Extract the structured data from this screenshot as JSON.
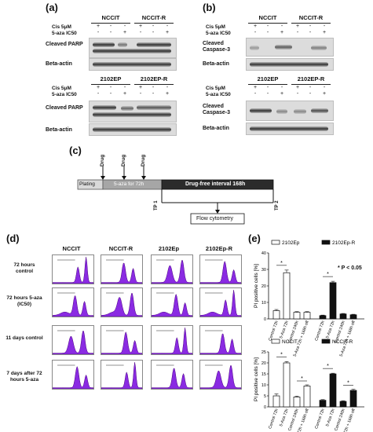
{
  "panel_a": {
    "letter": "(a)",
    "top": {
      "lines": [
        "NCCIT",
        "NCCIT-R"
      ],
      "treatments": [
        "Cis 5μM",
        "5-aza IC50"
      ],
      "cis_signs": [
        "+",
        "-",
        "-",
        "+",
        "-",
        "-"
      ],
      "aza_signs": [
        "-",
        "-",
        "+",
        "-",
        "-",
        "+"
      ],
      "target": "Cleaved PARP",
      "loading": "Beta-actin"
    },
    "bottom": {
      "lines": [
        "2102EP",
        "2102EP-R"
      ],
      "treatments": [
        "Cis 5μM",
        "5-aza IC50"
      ],
      "cis_signs": [
        "+",
        "-",
        "-",
        "+",
        "-",
        "-"
      ],
      "aza_signs": [
        "-",
        "-",
        "+",
        "-",
        "-",
        "+"
      ],
      "target": "Cleaved PARP",
      "loading": "Beta-actin"
    }
  },
  "panel_b": {
    "letter": "(b)",
    "top": {
      "lines": [
        "NCCIT",
        "NCCIT-R"
      ],
      "treatments": [
        "Cis 5μM",
        "5-aza IC50"
      ],
      "cis_signs": [
        "+",
        "-",
        "-",
        "+",
        "-",
        "-"
      ],
      "aza_signs": [
        "-",
        "-",
        "+",
        "-",
        "-",
        "+"
      ],
      "target": "Cleaved Caspase-3",
      "loading": "Beta-actin"
    },
    "bottom": {
      "lines": [
        "2102EP",
        "2102EP-R"
      ],
      "treatments": [
        "Cis 5μM",
        "5-aza IC50"
      ],
      "cis_signs": [
        "+",
        "-",
        "-",
        "+",
        "-",
        "-"
      ],
      "aza_signs": [
        "-",
        "-",
        "+",
        "-",
        "-",
        "+"
      ],
      "target": "Cleaved Caspase-3",
      "loading": "Beta-actin"
    }
  },
  "panel_c": {
    "letter": "(c)",
    "drug_label": "Drug",
    "plating": "Plating",
    "aza_period": "5-aza for 72h",
    "drug_free": "Drug-free interval 168h",
    "tp1": "TP 1",
    "tp2": "TP 2",
    "flow": "Flow cytometry"
  },
  "panel_d": {
    "letter": "(d)",
    "columns": [
      "NCCIT",
      "NCCIT-R",
      "2102Ep",
      "2102Ep-R"
    ],
    "rows": [
      "72 hours control",
      "72 hours 5-aza (IC50)",
      "11 days control",
      "7 days after 72 hours 5-aza"
    ],
    "histogram_color": "#8a2be2"
  },
  "panel_e": {
    "letter": "(e)",
    "significance_note": "* P < 0.05",
    "chart_data": [
      {
        "type": "bar",
        "ylabel": "PI positive cells [%]",
        "ylim": [
          0,
          40
        ],
        "yticks": [
          0,
          10,
          20,
          30,
          40
        ],
        "categories": [
          "Control 72h",
          "5-Aza 72h",
          "Control 240h",
          "5-Aza 72h + 168h off"
        ],
        "series": [
          {
            "name": "2102Ep",
            "fill": "#ffffff",
            "values": [
              5,
              28,
              4,
              4
            ],
            "errors": [
              0.7,
              1.6,
              0.4,
              0.4
            ]
          },
          {
            "name": "2102Ep-R",
            "fill": "#111111",
            "values": [
              2,
              22,
              3,
              2.5
            ],
            "errors": [
              0.3,
              0.8,
              0.3,
              0.3
            ]
          }
        ]
      },
      {
        "type": "bar",
        "ylabel": "PI positive cells [%]",
        "ylim": [
          0,
          25
        ],
        "yticks": [
          0,
          5,
          10,
          15,
          20,
          25
        ],
        "categories": [
          "Control 72h",
          "5-Aza 72h",
          "Control 240h",
          "5-Aza 72h + 168h off"
        ],
        "series": [
          {
            "name": "NCCIT",
            "fill": "#ffffff",
            "values": [
              5,
              20,
              4.5,
              9.5
            ],
            "errors": [
              0.9,
              0.6,
              0.4,
              0.5
            ]
          },
          {
            "name": "NCCIT-R",
            "fill": "#111111",
            "values": [
              3,
              15,
              2.5,
              7.5
            ],
            "errors": [
              0.3,
              0.3,
              0.3,
              0.5
            ]
          }
        ]
      }
    ]
  }
}
